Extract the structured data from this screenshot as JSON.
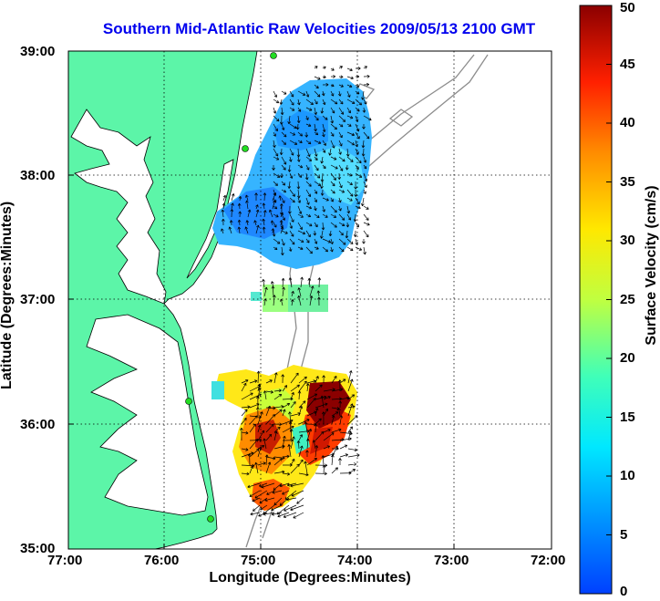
{
  "title": "Southern Mid-Atlantic Raw Velocities 2009/05/13 2100 GMT",
  "x_axis": {
    "label": "Longitude (Degrees:Minutes)",
    "ticks": [
      "77:00",
      "76:00",
      "75:00",
      "74:00",
      "73:00",
      "72:00"
    ]
  },
  "y_axis": {
    "label": "Latitude (Degrees:Minutes)",
    "ticks": [
      "39:00",
      "38:00",
      "37:00",
      "36:00",
      "35:00"
    ]
  },
  "colorbar": {
    "label": "Surface Velocity (cm/s)",
    "ticks": [
      "50",
      "45",
      "40",
      "35",
      "30",
      "25",
      "20",
      "15",
      "10",
      "5",
      "0"
    ],
    "range": [
      0,
      50
    ],
    "colormap": "jet"
  },
  "colors": {
    "title": "#0000ee",
    "land": "#5cf5a8",
    "coastline": "#000000",
    "bathymetry": "#8c8c8c",
    "grid": "#000000",
    "station_marker": "#22dd22"
  },
  "map": {
    "extent": {
      "lon": [
        "77:00",
        "72:00"
      ],
      "lat": [
        "35:00",
        "39:00"
      ]
    },
    "grid": "dotted"
  }
}
